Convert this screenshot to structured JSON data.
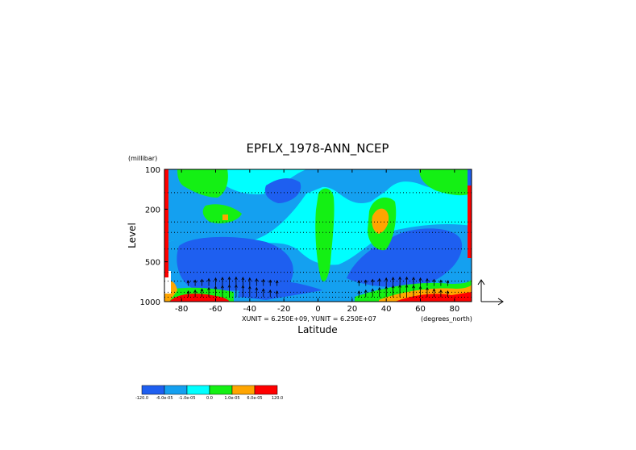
{
  "chart_data": {
    "type": "heatmap",
    "title": "EPFLX_1978-ANN_NCEP",
    "y_unit_label": "(millibar)",
    "ylabel": "Level",
    "xlabel": "Latitude",
    "x_unit_label": "(degrees_north)",
    "vector_units_text": "XUNIT = 6.250E+09, YUNIT = 6.250E+07",
    "x_ticks": [
      -80,
      -60,
      -40,
      -20,
      0,
      20,
      40,
      60,
      80
    ],
    "x_tick_labels": [
      "-80",
      "-60",
      "-40",
      "-20",
      "0",
      "20",
      "40",
      "60",
      "80"
    ],
    "y_ticks": [
      100,
      200,
      500,
      1000
    ],
    "y_tick_labels": [
      "100",
      "200",
      "500",
      "1000"
    ],
    "xlim": [
      -90,
      90
    ],
    "ylim": [
      1000,
      100
    ],
    "y_scale": "log",
    "levels_dotted": [
      150,
      250,
      300,
      400,
      600,
      700,
      850,
      925
    ],
    "colorbar": {
      "colors": [
        "#1e5ff0",
        "#14a0f0",
        "#00ffff",
        "#14f014",
        "#ffa500",
        "#ff0000"
      ],
      "labels": [
        "-120.0",
        "-6.0e-05",
        "-1.0e-05",
        "0.0",
        "1.0e-05",
        "6.0e-05",
        "120.0"
      ]
    },
    "regions": [
      {
        "name": "midlat-NH-blue",
        "center": [
          58,
          400
        ],
        "value": -3e-05
      },
      {
        "name": "midlat-SH-blue",
        "center": [
          -60,
          500
        ],
        "value": -3e-05
      },
      {
        "name": "equatorial-green-band",
        "center": [
          2,
          300
        ],
        "value": 5e-06
      },
      {
        "name": "tropical-NH-green",
        "center": [
          33,
          230
        ],
        "value": 5e-06
      },
      {
        "name": "tropical-NH-orange",
        "center": [
          35,
          210
        ],
        "value": 2e-05
      },
      {
        "name": "upper-SH-green",
        "center": [
          -55,
          140
        ],
        "value": 5e-06
      },
      {
        "name": "upper-NH-green",
        "center": [
          72,
          130
        ],
        "value": 5e-06
      },
      {
        "name": "surface-NH-orange-red",
        "center": [
          55,
          950
        ],
        "value": 8e-05
      },
      {
        "name": "surface-SH-red",
        "center": [
          -70,
          960
        ],
        "value": 8e-05
      }
    ]
  }
}
